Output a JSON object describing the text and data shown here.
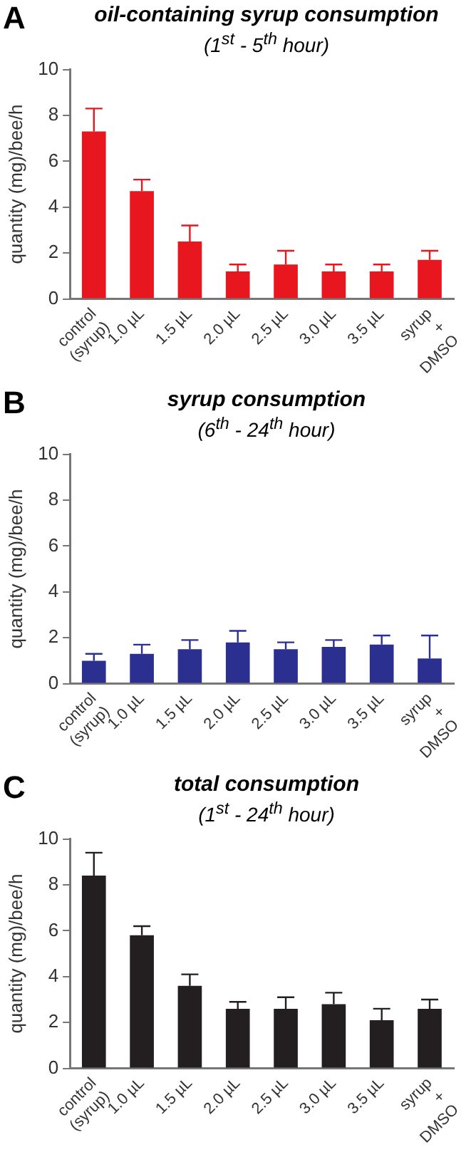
{
  "chart_data": [
    {
      "type": "bar",
      "title": "oil-containing syrup consumption",
      "subtitle": "(1$^{st}$ - 5$^{th}$ hour)",
      "ylabel": "quantity (mg)/bee/h",
      "annotations": [
        "A"
      ],
      "grid": false,
      "categories": [
        "control\n(syrup)",
        "1.0 µL",
        "1.5 µL",
        "2.0 µL",
        "2.5 µL",
        "3.0 µL",
        "3.5 µL",
        "syrup\n+\nDMSO"
      ],
      "values": [
        7.3,
        4.7,
        2.5,
        1.2,
        1.5,
        1.2,
        1.2,
        1.7
      ],
      "color": "#e8171f",
      "errors": [
        [
          7.3,
          8.3
        ],
        [
          4.7,
          5.2
        ],
        [
          2.5,
          3.2
        ],
        [
          1.2,
          1.5
        ],
        [
          1.5,
          2.1
        ],
        [
          1.2,
          1.5
        ],
        [
          1.2,
          1.5
        ],
        [
          1.7,
          2.1
        ]
      ],
      "ylim": [
        0,
        10
      ],
      "yticks": [
        0,
        2,
        4,
        6,
        8,
        10
      ]
    },
    {
      "type": "bar",
      "title": "syrup consumption",
      "subtitle": "(6$^{th}$ - 24$^{th}$ hour)",
      "ylabel": "quantity (mg)/bee/h",
      "annotations": [
        "B"
      ],
      "grid": false,
      "categories": [
        "control\n(syrup)",
        "1.0 µL",
        "1.5 µL",
        "2.0 µL",
        "2.5 µL",
        "3.0 µL",
        "3.5 µL",
        "syrup\n+\nDMSO"
      ],
      "values": [
        1.0,
        1.3,
        1.5,
        1.8,
        1.5,
        1.6,
        1.7,
        1.1
      ],
      "color": "#2b3090",
      "errors": [
        [
          1.0,
          1.3
        ],
        [
          1.3,
          1.7
        ],
        [
          1.5,
          1.9
        ],
        [
          1.8,
          2.3
        ],
        [
          1.5,
          1.8
        ],
        [
          1.6,
          1.9
        ],
        [
          1.7,
          2.1
        ],
        [
          1.1,
          2.1
        ]
      ],
      "ylim": [
        0,
        10
      ],
      "yticks": [
        0,
        2,
        4,
        6,
        8,
        10
      ]
    },
    {
      "type": "bar",
      "title": "total consumption",
      "subtitle": "(1$^{st}$ - 24$^{th}$ hour)",
      "ylabel": "quantity (mg)/bee/h",
      "annotations": [
        "C"
      ],
      "grid": false,
      "categories": [
        "control\n(syrup)",
        "1.0 µL",
        "1.5 µL",
        "2.0 µL",
        "2.5 µL",
        "3.0 µL",
        "3.5 µL",
        "syrup\n+\nDMSO"
      ],
      "values": [
        8.4,
        5.8,
        3.6,
        2.6,
        2.6,
        2.8,
        2.1,
        2.6
      ],
      "color": "#231f20",
      "errors": [
        [
          8.4,
          9.4
        ],
        [
          5.8,
          6.2
        ],
        [
          3.6,
          4.1
        ],
        [
          2.6,
          2.9
        ],
        [
          2.6,
          3.1
        ],
        [
          2.8,
          3.3
        ],
        [
          2.1,
          2.6
        ],
        [
          2.6,
          3.0
        ]
      ],
      "ylim": [
        0,
        10
      ],
      "yticks": [
        0,
        2,
        4,
        6,
        8,
        10
      ]
    }
  ]
}
